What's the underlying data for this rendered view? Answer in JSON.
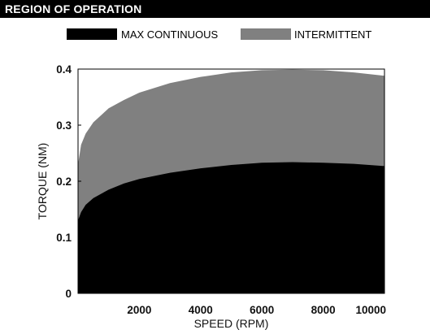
{
  "header": {
    "title": "REGION OF OPERATION"
  },
  "chart_data": {
    "type": "area",
    "xlabel": "SPEED (RPM)",
    "ylabel": "TORQUE (NM)",
    "xlim": [
      0,
      10000
    ],
    "ylim": [
      0,
      0.4
    ],
    "x_ticks": [
      "2000",
      "4000",
      "6000",
      "8000",
      "10000"
    ],
    "y_ticks": [
      "0",
      "0.1",
      "0.2",
      "0.3",
      "0.4"
    ],
    "grid": false,
    "legend_position": "top",
    "x": [
      0,
      100,
      250,
      500,
      1000,
      1500,
      2000,
      3000,
      4000,
      5000,
      6000,
      7000,
      8000,
      9000,
      10000
    ],
    "series": [
      {
        "name": "INTERMITTENT",
        "color": "#808080",
        "values": [
          0.23,
          0.265,
          0.285,
          0.305,
          0.33,
          0.345,
          0.358,
          0.375,
          0.386,
          0.394,
          0.398,
          0.399,
          0.398,
          0.394,
          0.388
        ]
      },
      {
        "name": "MAX CONTINUOUS",
        "color": "#000000",
        "values": [
          0.13,
          0.145,
          0.158,
          0.17,
          0.185,
          0.196,
          0.204,
          0.215,
          0.223,
          0.229,
          0.233,
          0.234,
          0.233,
          0.231,
          0.227
        ]
      }
    ]
  }
}
